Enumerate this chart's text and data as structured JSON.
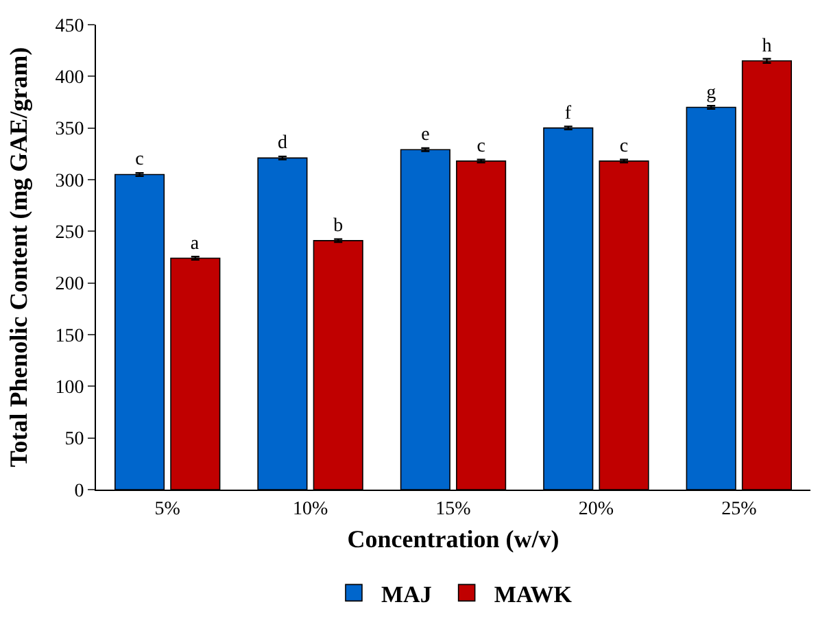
{
  "chart_data": {
    "type": "bar",
    "xlabel": "Concentration (w/v)",
    "ylabel": "Total Phenolic Content (mg GAE/gram)",
    "categories": [
      "5%",
      "10%",
      "15%",
      "20%",
      "25%"
    ],
    "series": [
      {
        "name": "MAJ",
        "color": "#0066cc",
        "values": [
          305,
          321,
          329,
          350,
          370
        ],
        "errors": [
          1.5,
          1.5,
          1.5,
          1.5,
          1.5
        ],
        "value_labels": [
          "c",
          "d",
          "e",
          "f",
          "g"
        ]
      },
      {
        "name": "MAWK",
        "color": "#c00000",
        "values": [
          224,
          241,
          318,
          318,
          415
        ],
        "errors": [
          1.5,
          1.5,
          1.5,
          1.5,
          2
        ],
        "value_labels": [
          "a",
          "b",
          "c",
          "c",
          "h"
        ]
      }
    ],
    "ylim": [
      0,
      450
    ],
    "yticks": [
      0,
      50,
      100,
      150,
      200,
      250,
      300,
      350,
      400,
      450
    ],
    "legend": "bottom"
  }
}
